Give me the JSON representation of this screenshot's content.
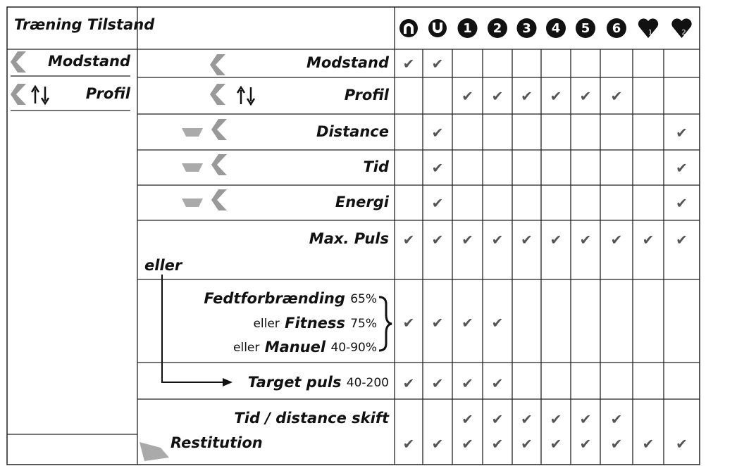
{
  "header": {
    "title": "Træning Tilstand",
    "program_numbers": [
      "1",
      "2",
      "3",
      "4",
      "5",
      "6"
    ],
    "heart_numbers": [
      "1",
      "2"
    ]
  },
  "left": {
    "items": [
      "Modstand",
      "Profil"
    ]
  },
  "eller": "eller",
  "check": "✔",
  "rows": [
    {
      "label": "Modstand",
      "cells": [
        "✔",
        "✔",
        null,
        null,
        null,
        null,
        null,
        null,
        null,
        null
      ]
    },
    {
      "label": "Profil",
      "cells": [
        null,
        null,
        "✔",
        "✔",
        "✔",
        "✔",
        "✔",
        "✔",
        null,
        null
      ]
    },
    {
      "label": "Distance",
      "cells": [
        null,
        "✔",
        null,
        null,
        null,
        null,
        null,
        null,
        null,
        "✔"
      ]
    },
    {
      "label": "Tid",
      "cells": [
        null,
        "✔",
        null,
        null,
        null,
        null,
        null,
        null,
        null,
        "✔"
      ]
    },
    {
      "label": "Energi",
      "cells": [
        null,
        "✔",
        null,
        null,
        null,
        null,
        null,
        null,
        null,
        "✔"
      ]
    },
    {
      "label": "Max. Puls",
      "cells": [
        "✔",
        "✔",
        "✔",
        "✔",
        "✔",
        "✔",
        "✔",
        "✔",
        "✔",
        "✔"
      ]
    },
    {
      "lines": [
        {
          "label": "Fedtforbrænding",
          "value": "65%"
        },
        {
          "prefix": "eller",
          "label": "Fitness",
          "value": "75%"
        },
        {
          "prefix": "eller",
          "label": "Manuel",
          "value": "40-90%"
        }
      ],
      "cells": [
        "✔",
        "✔",
        "✔",
        "✔",
        null,
        null,
        null,
        null,
        null,
        null
      ]
    },
    {
      "label": "Target puls",
      "value": "40-200",
      "cells": [
        "✔",
        "✔",
        "✔",
        "✔",
        null,
        null,
        null,
        null,
        null,
        null
      ]
    },
    {
      "label": "Tid / distance skift",
      "cells": [
        null,
        null,
        "✔",
        "✔",
        "✔",
        "✔",
        "✔",
        "✔",
        null,
        null
      ]
    },
    {
      "label": "Restitution",
      "cells": [
        "✔",
        "✔",
        "✔",
        "✔",
        "✔",
        "✔",
        "✔",
        "✔",
        "✔",
        "✔"
      ]
    }
  ]
}
